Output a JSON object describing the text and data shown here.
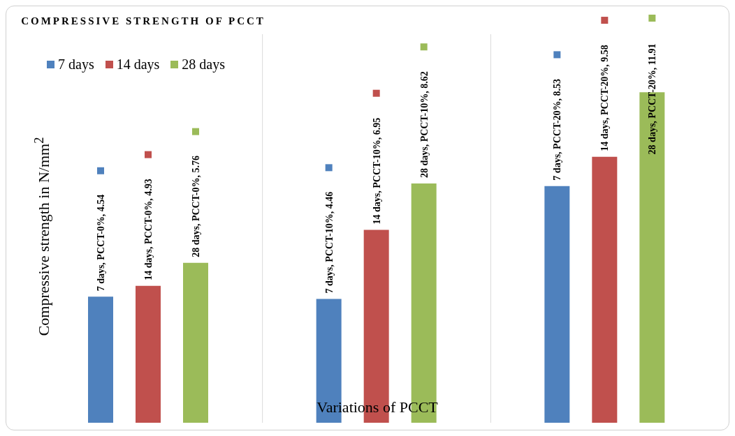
{
  "chart_data": {
    "type": "bar",
    "title": "COMPRESSIVE STRENGTH OF PCCT",
    "xlabel": "Variations of PCCT",
    "ylabel": "Compressive strength in N/mm$^{2}$",
    "categories": [
      null,
      null,
      null
    ],
    "series": [
      {
        "name": "7 days",
        "color": "#4f81bd",
        "values": [
          4.54,
          4.46,
          8.53
        ],
        "value_labels": [
          "7 days, PCCT-0%, 4.54",
          "7 days, PCCT-10%, 4.46",
          "7 days, PCCT-20%, 8.53"
        ]
      },
      {
        "name": "14 days",
        "color": "#c0504d",
        "values": [
          4.93,
          6.95,
          9.58
        ],
        "value_labels": [
          "14 days, PCCT-0%, 4.93",
          "14 days, PCCT-10%, 6.95",
          "14 days, PCCT-20%, 9.58"
        ]
      },
      {
        "name": "28 days",
        "color": "#9bbb59",
        "values": [
          5.76,
          8.62,
          11.91
        ],
        "value_labels": [
          "28 days, PCCT-0%, 5.76",
          "28 days, PCCT-10%, 8.62",
          "28 days, PCCT-20%, 11.91"
        ]
      }
    ],
    "ylim": [
      0,
      14
    ],
    "grid": "x",
    "legend": "top left"
  }
}
